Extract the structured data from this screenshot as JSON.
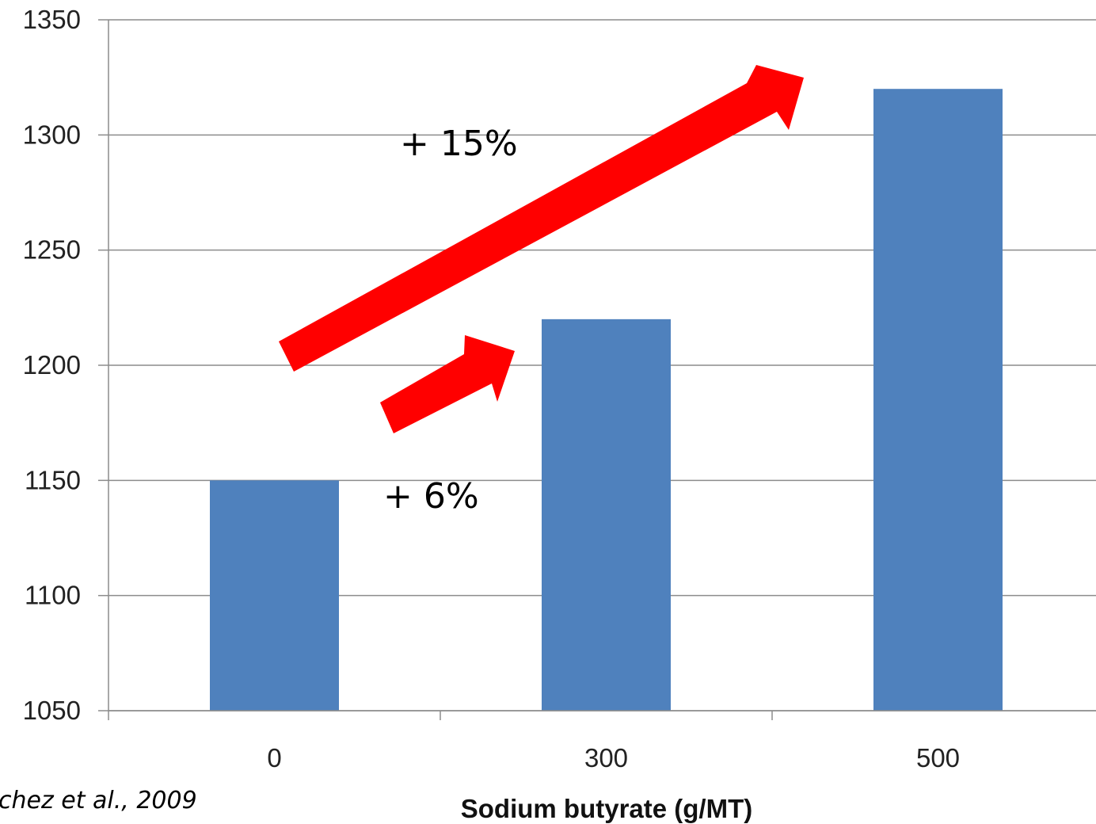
{
  "chart_data": {
    "type": "bar",
    "categories": [
      "0",
      "300",
      "500"
    ],
    "values": [
      1150,
      1220,
      1320
    ],
    "title": "",
    "xlabel": "Sodium butyrate (g/MT)",
    "ylabel": "",
    "ylim": [
      1050,
      1350
    ],
    "yticks": [
      1050,
      1100,
      1150,
      1200,
      1250,
      1300,
      1350
    ],
    "grid": true,
    "bar_color": "#4F81BD",
    "arrow_color": "#FF0000",
    "annotations": [
      {
        "text": "+ 15%",
        "from": "0",
        "to": "500"
      },
      {
        "text": "+ 6%",
        "from": "0",
        "to": "300"
      }
    ]
  },
  "source_text": "chez et al., 2009"
}
